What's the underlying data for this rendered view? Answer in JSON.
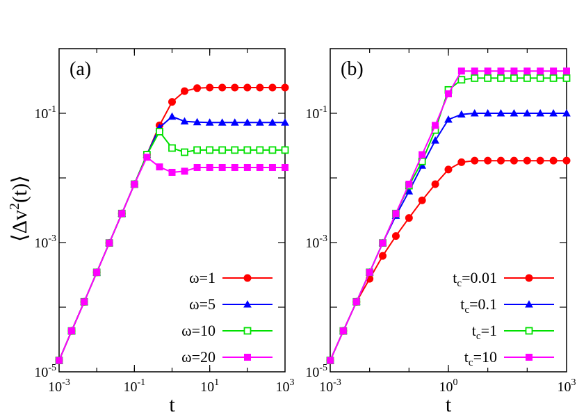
{
  "shared_ylabel": "⟨Δv²(t)⟩",
  "chart_data": [
    {
      "type": "line",
      "panel_label": "(a)",
      "xlabel": "t",
      "ylabel": "⟨Δv²(t)⟩",
      "xscale": "log",
      "yscale": "log",
      "xlim": [
        0.001,
        1000
      ],
      "ylim": [
        1e-05,
        1
      ],
      "xticks": [
        0.001,
        0.1,
        10,
        1000
      ],
      "xtick_labels": [
        "10-3",
        "10-1",
        "101",
        "103"
      ],
      "yticks": [
        1e-05,
        0.001,
        0.1
      ],
      "ytick_labels": [
        "10-5",
        "10-3",
        "10-1"
      ],
      "legend_position": "bottom-right",
      "x": [
        0.001,
        0.00215,
        0.00464,
        0.01,
        0.0215,
        0.0464,
        0.1,
        0.215,
        0.464,
        1,
        2.15,
        4.64,
        10,
        21.5,
        46.4,
        100,
        215,
        464,
        1000
      ],
      "series": [
        {
          "name": "ω=1",
          "color": "#ff0000",
          "marker": "circle-filled",
          "values": [
            1.5e-05,
            4.29e-05,
            0.000121,
            0.000346,
            0.000985,
            0.00281,
            0.008,
            0.0229,
            0.065,
            0.15,
            0.22,
            0.245,
            0.25,
            0.25,
            0.25,
            0.25,
            0.25,
            0.25,
            0.25
          ]
        },
        {
          "name": "ω=5",
          "color": "#0000ff",
          "marker": "triangle-filled",
          "values": [
            1.5e-05,
            4.29e-05,
            0.000121,
            0.000346,
            0.000985,
            0.00281,
            0.008,
            0.0229,
            0.06,
            0.089,
            0.075,
            0.073,
            0.072,
            0.072,
            0.072,
            0.072,
            0.072,
            0.072,
            0.072
          ]
        },
        {
          "name": "ω=10",
          "color": "#00e000",
          "marker": "square-open",
          "values": [
            1.5e-05,
            4.29e-05,
            0.000121,
            0.000346,
            0.000985,
            0.00281,
            0.008,
            0.0229,
            0.052,
            0.029,
            0.025,
            0.027,
            0.027,
            0.027,
            0.027,
            0.027,
            0.027,
            0.027,
            0.027
          ]
        },
        {
          "name": "ω=20",
          "color": "#ff00ff",
          "marker": "square-filled",
          "values": [
            1.5e-05,
            4.29e-05,
            0.000121,
            0.000346,
            0.000985,
            0.00281,
            0.008,
            0.0209,
            0.0148,
            0.0122,
            0.0127,
            0.0145,
            0.0145,
            0.0145,
            0.0145,
            0.0145,
            0.0145,
            0.0145,
            0.0145
          ]
        }
      ]
    },
    {
      "type": "line",
      "panel_label": "(b)",
      "xlabel": "t",
      "ylabel": "",
      "xscale": "log",
      "yscale": "log",
      "xlim": [
        0.001,
        1000
      ],
      "ylim": [
        1e-05,
        1
      ],
      "xticks": [
        0.001,
        1,
        1000
      ],
      "xtick_labels": [
        "10-3",
        "100",
        "103"
      ],
      "yticks": [
        1e-05,
        0.001,
        0.1
      ],
      "ytick_labels": [
        "10-5",
        "10-3",
        "10-1"
      ],
      "legend_position": "bottom-right",
      "x": [
        0.001,
        0.00215,
        0.00464,
        0.01,
        0.0215,
        0.0464,
        0.1,
        0.215,
        0.464,
        1,
        2.15,
        4.64,
        10,
        21.5,
        46.4,
        100,
        215,
        464,
        1000
      ],
      "series": [
        {
          "name": "tc=0.01",
          "color": "#ff0000",
          "marker": "circle-filled",
          "values": [
            1.5e-05,
            4.29e-05,
            0.000121,
            0.000275,
            0.000622,
            0.00126,
            0.0024,
            0.0045,
            0.008,
            0.0135,
            0.0175,
            0.0185,
            0.0185,
            0.0185,
            0.0185,
            0.0185,
            0.0185,
            0.0185,
            0.0185
          ]
        },
        {
          "name": "tc=0.1",
          "color": "#0000ff",
          "marker": "triangle-filled",
          "values": [
            1.5e-05,
            4.29e-05,
            0.000121,
            0.000346,
            0.000985,
            0.0026,
            0.0062,
            0.0155,
            0.038,
            0.08,
            0.096,
            0.1,
            0.1,
            0.1,
            0.1,
            0.1,
            0.1,
            0.1,
            0.1
          ]
        },
        {
          "name": "tc=1",
          "color": "#00e000",
          "marker": "square-open",
          "values": [
            1.5e-05,
            4.29e-05,
            0.000121,
            0.000346,
            0.000985,
            0.00281,
            0.0076,
            0.018,
            0.055,
            0.23,
            0.33,
            0.35,
            0.35,
            0.35,
            0.35,
            0.35,
            0.35,
            0.35,
            0.35
          ]
        },
        {
          "name": "tc=10",
          "color": "#ff00ff",
          "marker": "square-filled",
          "values": [
            1.5e-05,
            4.29e-05,
            0.000121,
            0.000346,
            0.000985,
            0.00281,
            0.008,
            0.0229,
            0.065,
            0.2,
            0.45,
            0.45,
            0.45,
            0.45,
            0.45,
            0.45,
            0.45,
            0.45,
            0.45
          ]
        }
      ]
    }
  ]
}
